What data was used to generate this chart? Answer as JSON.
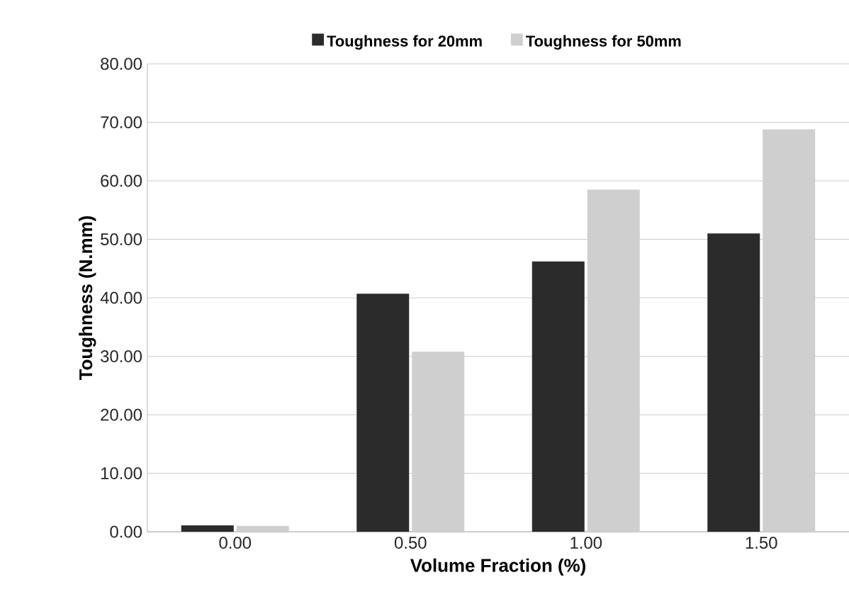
{
  "chart_data": {
    "type": "bar",
    "xlabel": "Volume Fraction (%)",
    "ylabel": "Toughness (N.mm)",
    "categories": [
      "0.00",
      "0.50",
      "1.00",
      "1.50"
    ],
    "series": [
      {
        "name": "Toughness for 20mm",
        "color": "#2b2b2b",
        "values": [
          1.1,
          40.7,
          46.2,
          51.0
        ]
      },
      {
        "name": "Toughness for 50mm",
        "color": "#cfcfcf",
        "values": [
          1.0,
          30.8,
          58.5,
          68.8
        ]
      }
    ],
    "ylim": [
      0,
      80
    ],
    "yticks": [
      {
        "value": 0,
        "label": "0.00"
      },
      {
        "value": 10,
        "label": "10.00"
      },
      {
        "value": 20,
        "label": "20.00"
      },
      {
        "value": 30,
        "label": "30.00"
      },
      {
        "value": 40,
        "label": "40.00"
      },
      {
        "value": 50,
        "label": "50.00"
      },
      {
        "value": 60,
        "label": "60.00"
      },
      {
        "value": 70,
        "label": "70.00"
      },
      {
        "value": 80,
        "label": "80.00"
      }
    ],
    "grid": "y",
    "legend": "top"
  }
}
